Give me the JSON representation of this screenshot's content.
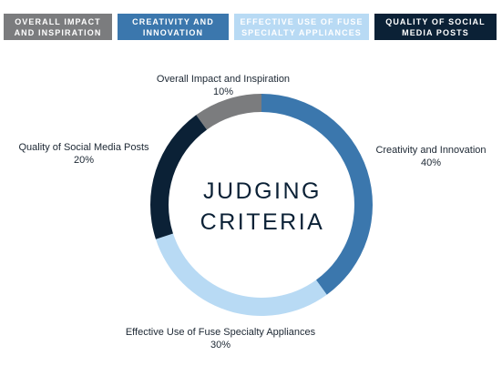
{
  "chart_data": {
    "type": "pie",
    "center_title": [
      "JUDGING",
      "CRITERIA"
    ],
    "categories": [
      "Overall Impact and Inspiration",
      "Creativity and Innovation",
      "Effective Use of Fuse Specialty Appliances",
      "Quality of Social Media Posts"
    ],
    "values": [
      10,
      40,
      30,
      20
    ],
    "value_labels": [
      "10%",
      "40%",
      "30%",
      "20%"
    ],
    "colors": [
      "#7b7c7e",
      "#3b77ad",
      "#b8daf4",
      "#0b2136"
    ],
    "legend": {
      "placement": "top",
      "entries": [
        "OVERALL IMPACT AND INSPIRATION",
        "CREATIVITY AND INNOVATION",
        "EFFECTIVE USE OF FUSE SPECIALTY APPLIANCES",
        "QUALITY OF SOCIAL MEDIA POSTS"
      ]
    }
  }
}
